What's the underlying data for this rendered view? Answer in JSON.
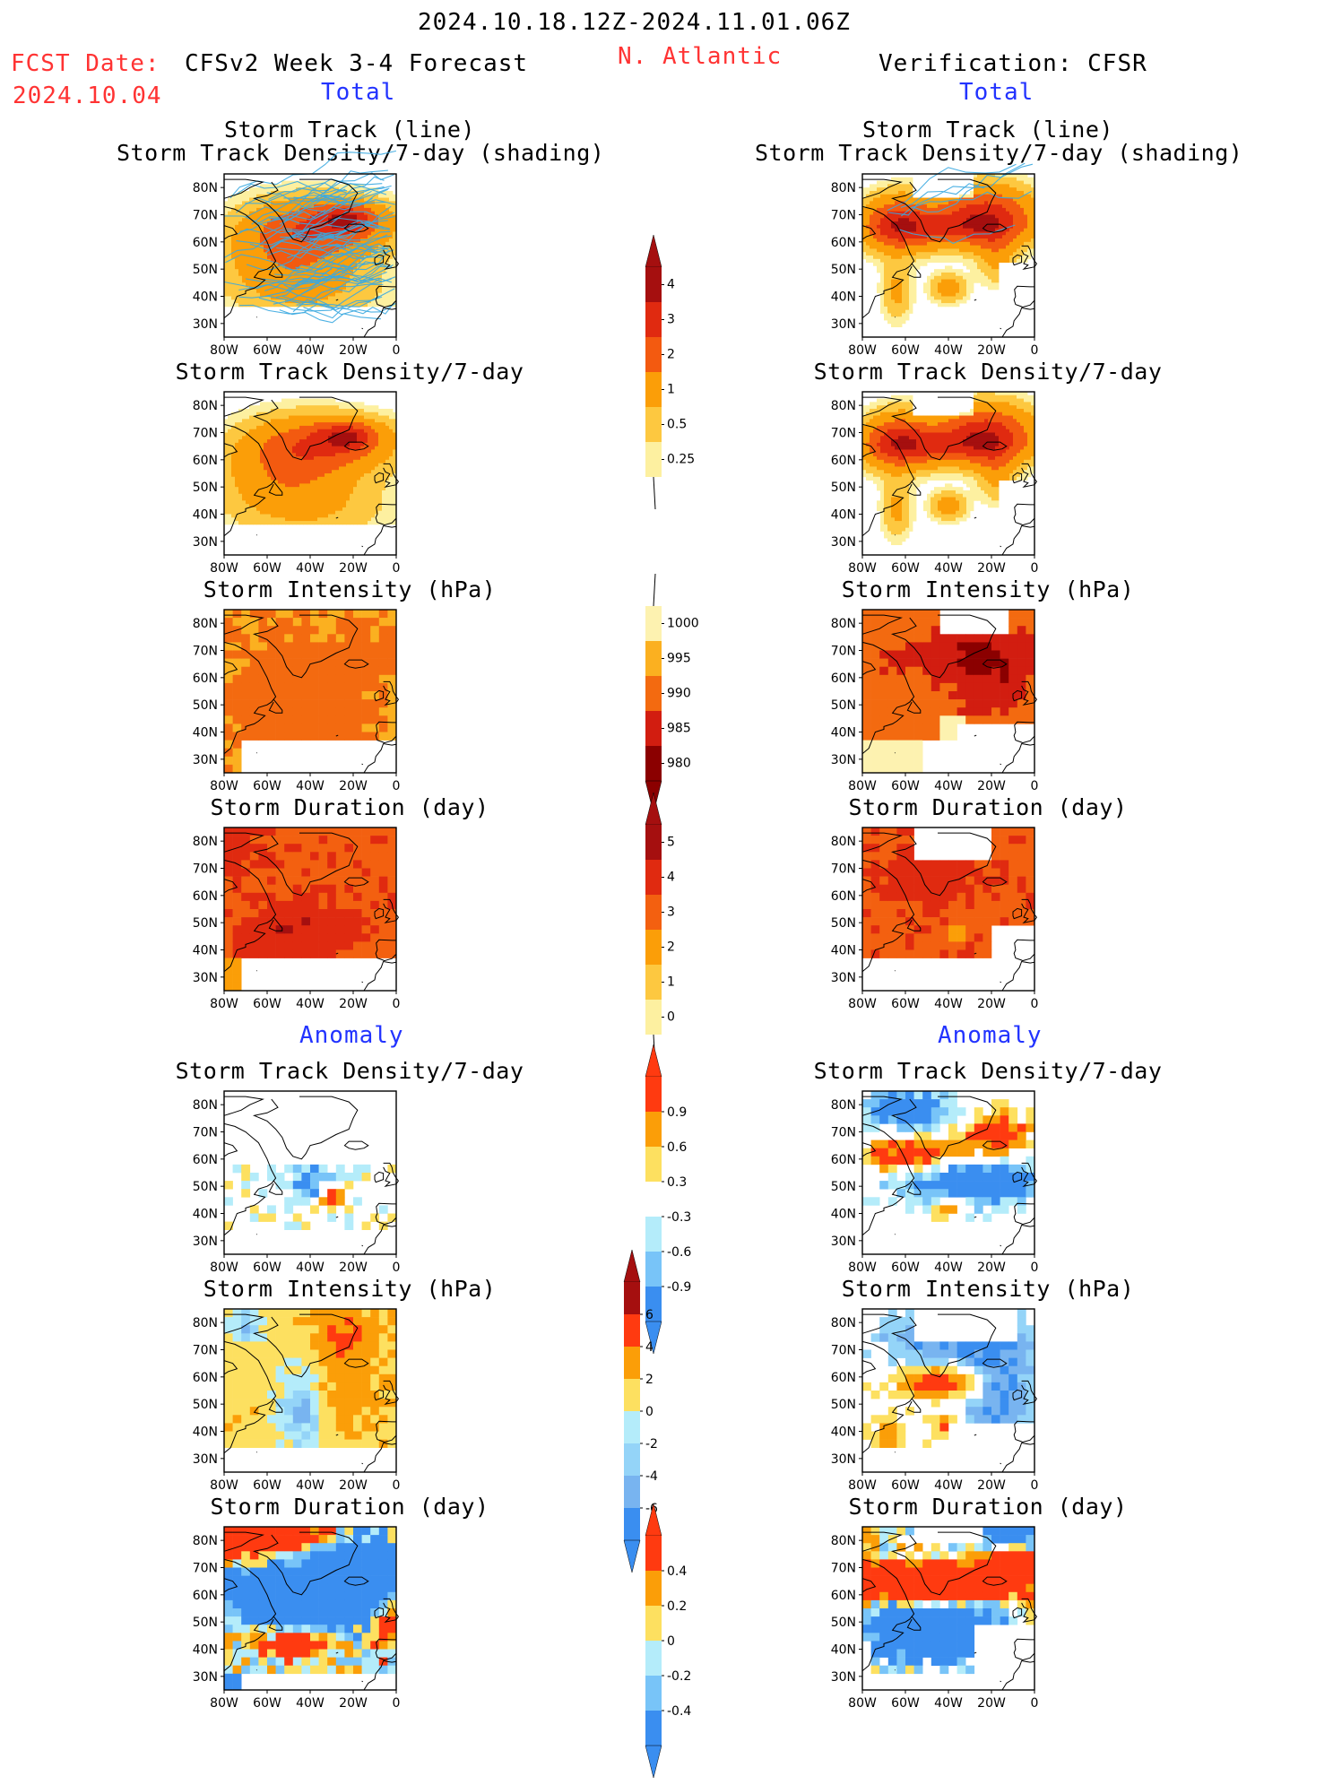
{
  "header": {
    "date_range": "2024.10.18.12Z-2024.11.01.06Z",
    "region": "N. Atlantic",
    "fcst_label": "FCST Date:",
    "fcst_date": "2024.10.04",
    "model": "CFSv2 Week 3-4 Forecast",
    "verification": "Verification: CFSR"
  },
  "sections": {
    "left_total": "Total",
    "right_total": "Total",
    "left_anomaly": "Anomaly",
    "right_anomaly": "Anomaly"
  },
  "titles": {
    "track": [
      "Storm Track (line)",
      "Storm Track Density/7-day (shading)"
    ],
    "density": "Storm Track Density/7-day",
    "intensity": "Storm Intensity (hPa)",
    "duration": "Storm Duration (day)"
  },
  "axes": {
    "lat_labels": [
      "80N",
      "70N",
      "60N",
      "50N",
      "40N",
      "30N"
    ],
    "lon_labels": [
      "80W",
      "60W",
      "40W",
      "20W",
      "0"
    ]
  },
  "colorbars": [
    {
      "name": "density-total-colorbar",
      "labels": [
        "4",
        "3",
        "2",
        "1",
        "0.5",
        "0.25"
      ],
      "colors": [
        "#a50f0f",
        "#e02a10",
        "#f35a10",
        "#fb9e08",
        "#fdc840",
        "#fdf0a0"
      ],
      "arrow": "top"
    },
    {
      "name": "intensity-total-colorbar",
      "labels": [
        "1000",
        "995",
        "990",
        "985",
        "980"
      ],
      "colors": [
        "#fdf2b0",
        "#fbb020",
        "#f36a10",
        "#d21d10",
        "#8b0000"
      ],
      "arrow": "bottom"
    },
    {
      "name": "duration-total-colorbar",
      "labels": [
        "5",
        "4",
        "3",
        "2",
        "1",
        "0"
      ],
      "colors": [
        "#a50f0f",
        "#e02a10",
        "#f36010",
        "#fb9e08",
        "#fdc840",
        "#fdf0a0"
      ],
      "arrow": "top"
    },
    {
      "name": "density-anomaly-colorbar",
      "labels": [
        "0.9",
        "0.6",
        "0.3",
        "-0.3",
        "-0.6",
        "-0.9"
      ],
      "colors": [
        "#ff3a10",
        "#fb9e08",
        "#fde060",
        "#ffffff",
        "#b4ecfa",
        "#78c4f8",
        "#3a8ef0"
      ],
      "arrow": "both"
    },
    {
      "name": "intensity-anomaly-colorbar",
      "labels": [
        "6",
        "4",
        "2",
        "0",
        "-2",
        "-4",
        "-6"
      ],
      "colors": [
        "#a50f0f",
        "#ff3a10",
        "#fb9e08",
        "#fde060",
        "#b4ecfa",
        "#94d4f8",
        "#78b4f0",
        "#3a8ef0"
      ],
      "arrow": "both"
    },
    {
      "name": "duration-anomaly-colorbar",
      "labels": [
        "0.4",
        "0.2",
        "0",
        "-0.2",
        "-0.4"
      ],
      "colors": [
        "#ff3a10",
        "#fb9e08",
        "#fde060",
        "#b4ecfa",
        "#78c4f8",
        "#3a8ef0"
      ],
      "arrow": "both"
    }
  ]
}
